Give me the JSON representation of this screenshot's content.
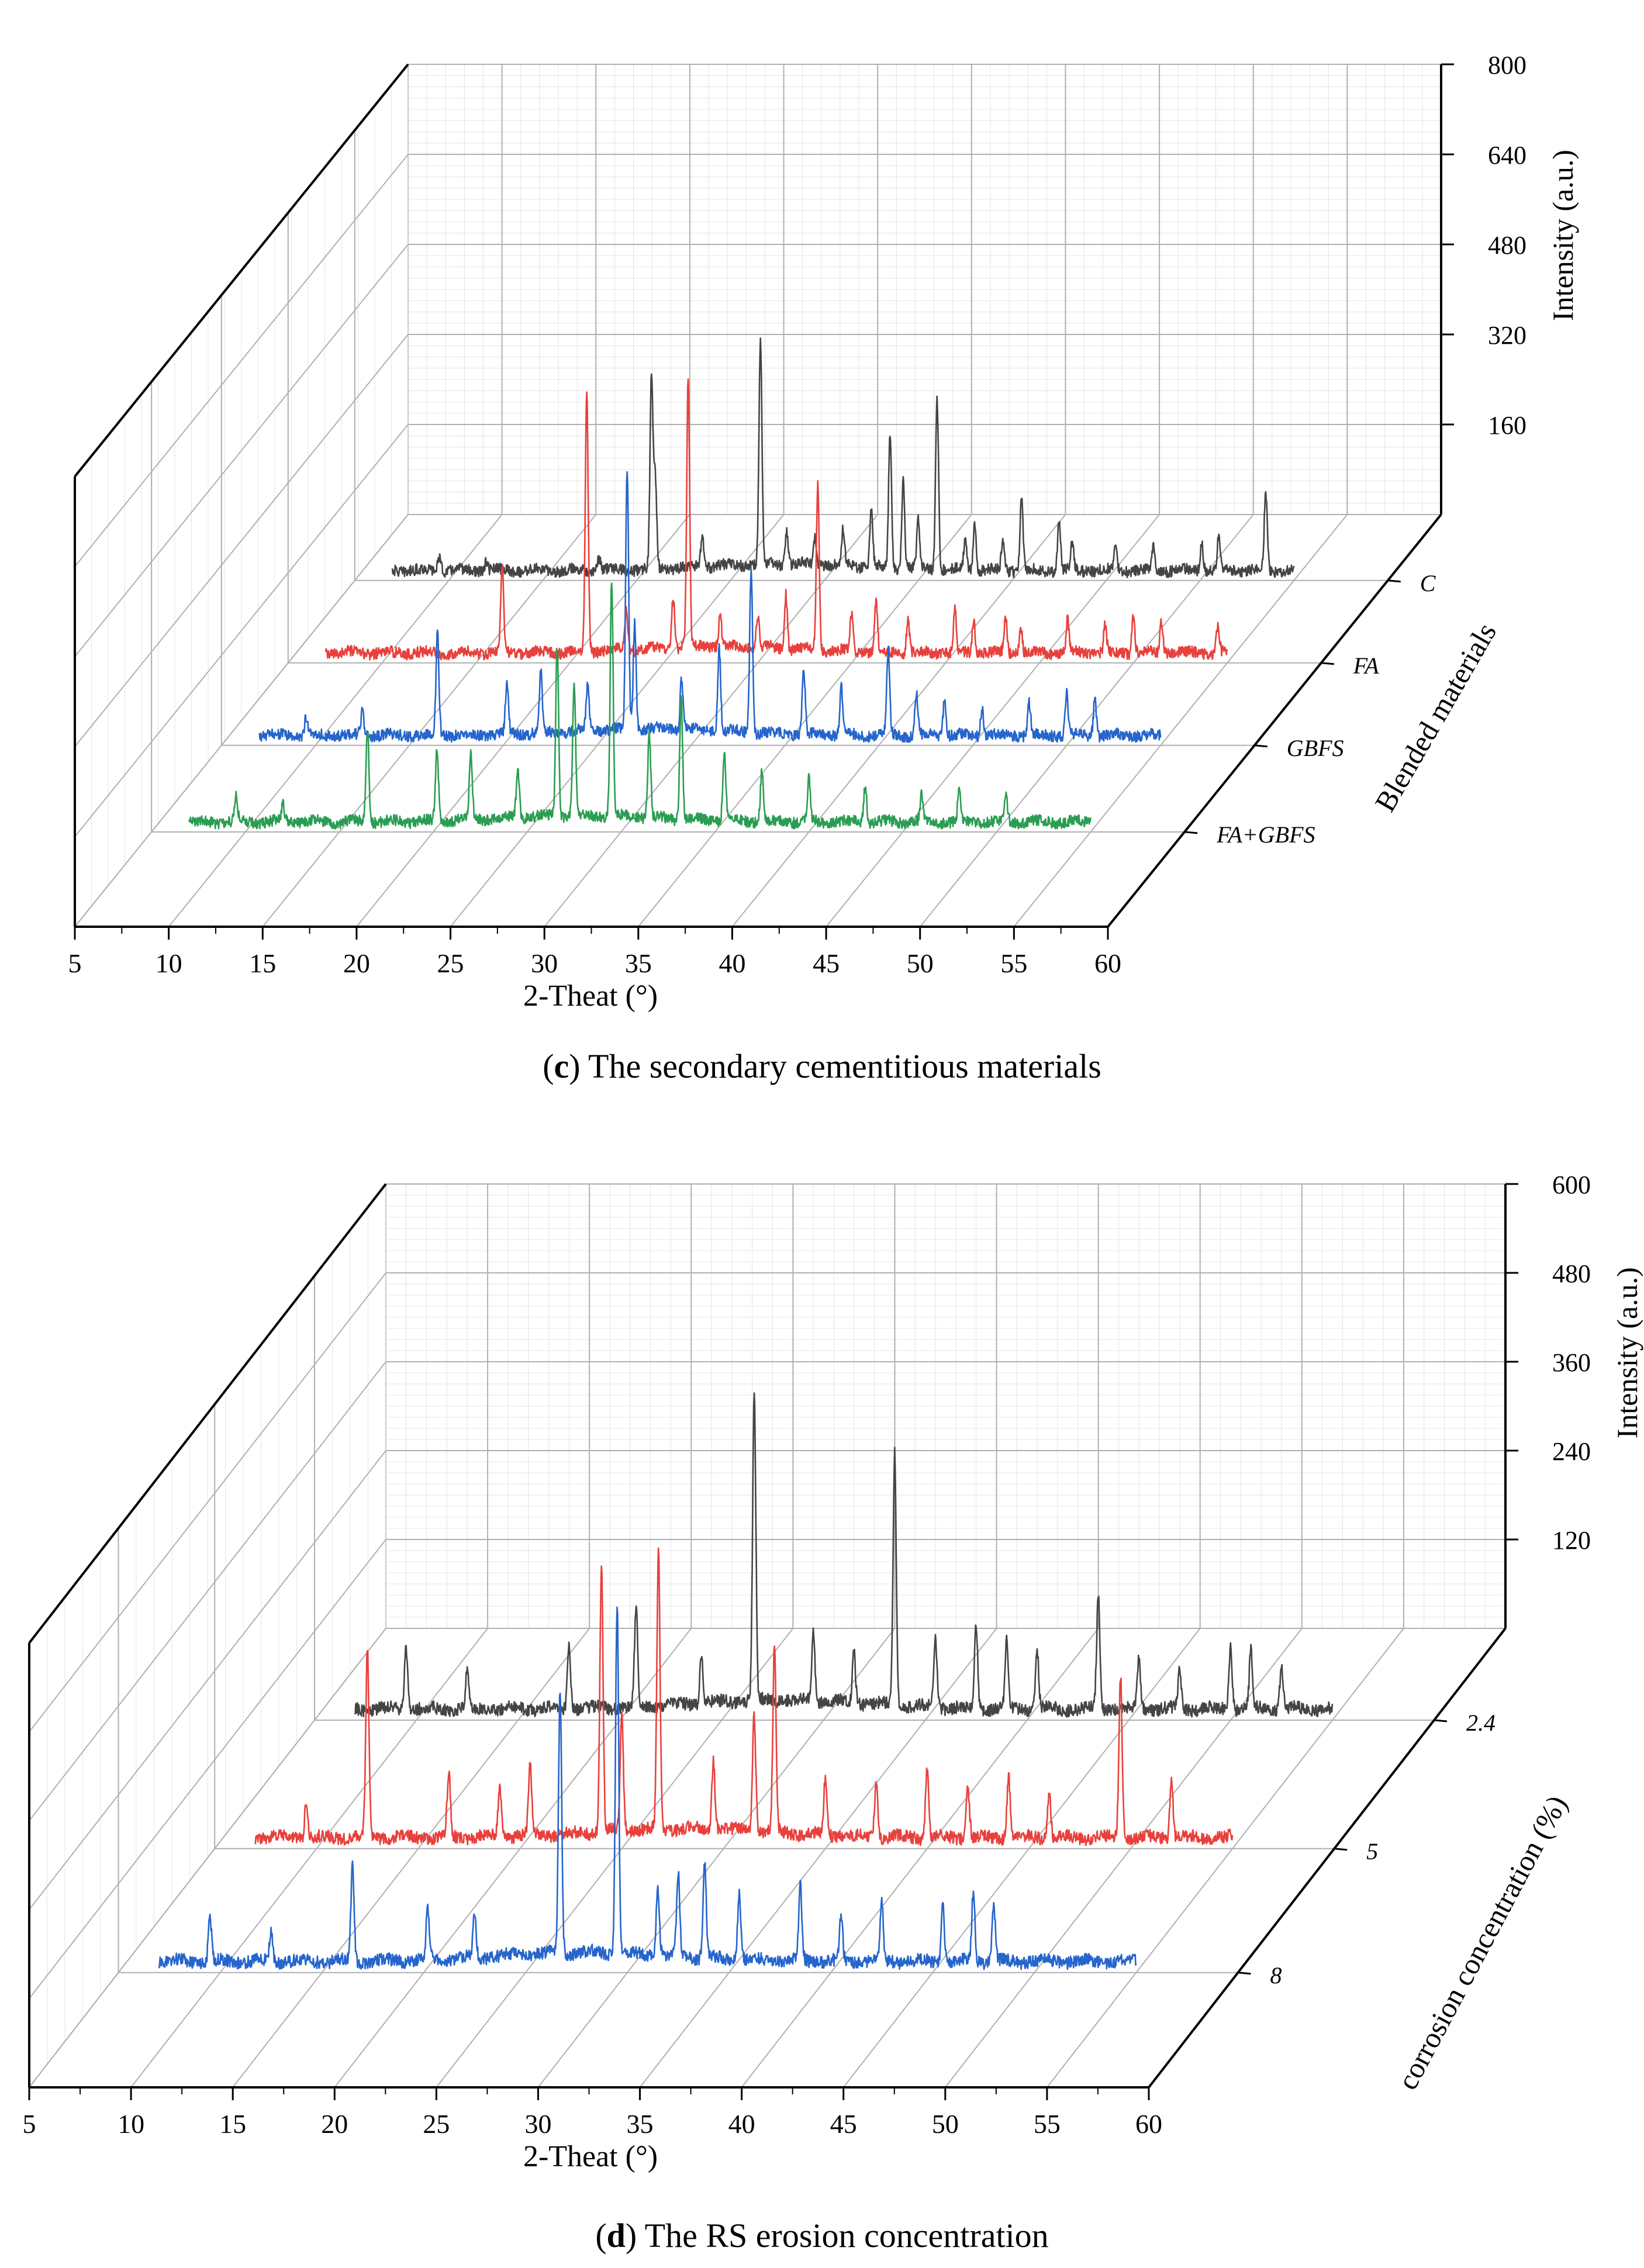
{
  "colors": {
    "C": "#444444",
    "FA": "#e8403c",
    "GBFS": "#2565cc",
    "FA_GBFS": "#2a9d52",
    "grid_major": "#b0b0b0",
    "grid_minor": "#e4e4e4",
    "axis": "#000000"
  },
  "chart_data": [
    {
      "id": "c",
      "type": "line",
      "view": "3d-waterfall",
      "caption_letter": "c",
      "caption_text": " The secondary cementitious materials",
      "xlabel": "2-Theat (°)",
      "ylabel": "Blended materials",
      "zlabel": "Intensity (a.u.)",
      "xlim": [
        5,
        60
      ],
      "xticks": [
        5,
        10,
        15,
        20,
        25,
        30,
        35,
        40,
        45,
        50,
        55,
        60
      ],
      "zlim": [
        0,
        800
      ],
      "zticks": [
        160,
        320,
        480,
        640,
        800
      ],
      "series": [
        {
          "name": "C",
          "color_key": "C",
          "baseline": 22,
          "noise": 12,
          "x_start": 7,
          "x_end": 55,
          "peaks": [
            [
              9.5,
              35
            ],
            [
              12,
              20
            ],
            [
              18,
              28
            ],
            [
              20.8,
              420
            ],
            [
              21,
              190
            ],
            [
              23.5,
              70
            ],
            [
              26.6,
              480
            ],
            [
              28,
              70
            ],
            [
              29.5,
              60
            ],
            [
              31,
              80
            ],
            [
              32.5,
              120
            ],
            [
              33.5,
              290
            ],
            [
              34.2,
              190
            ],
            [
              35,
              110
            ],
            [
              36,
              380
            ],
            [
              37.5,
              70
            ],
            [
              38,
              100
            ],
            [
              39.5,
              60
            ],
            [
              40.5,
              160
            ],
            [
              42.5,
              110
            ],
            [
              43.2,
              60
            ],
            [
              45.5,
              55
            ],
            [
              47.5,
              50
            ],
            [
              50.1,
              60
            ],
            [
              51,
              70
            ],
            [
              53.5,
              170
            ]
          ]
        },
        {
          "name": "FA",
          "color_key": "FA",
          "baseline": 22,
          "noise": 12,
          "x_start": 7,
          "x_end": 55,
          "peaks": [
            [
              16.4,
              190
            ],
            [
              20.9,
              560
            ],
            [
              23,
              90
            ],
            [
              25.5,
              110
            ],
            [
              26.3,
              580
            ],
            [
              28,
              70
            ],
            [
              30,
              70
            ],
            [
              31.5,
              120
            ],
            [
              33.2,
              360
            ],
            [
              35,
              80
            ],
            [
              36.3,
              110
            ],
            [
              38,
              70
            ],
            [
              40.5,
              90
            ],
            [
              41.5,
              70
            ],
            [
              43.2,
              80
            ],
            [
              44,
              60
            ],
            [
              46.5,
              70
            ],
            [
              48.5,
              60
            ],
            [
              50,
              80
            ],
            [
              51.5,
              70
            ],
            [
              54.5,
              60
            ]
          ]
        },
        {
          "name": "GBFS",
          "color_key": "GBFS",
          "baseline": 22,
          "noise": 12,
          "x_start": 7,
          "x_end": 55,
          "peaks": [
            [
              9.5,
              40
            ],
            [
              12.5,
              50
            ],
            [
              16.5,
              220
            ],
            [
              20.2,
              110
            ],
            [
              22,
              130
            ],
            [
              24.5,
              100
            ],
            [
              26.6,
              560
            ],
            [
              27,
              230
            ],
            [
              29.5,
              110
            ],
            [
              31.5,
              180
            ],
            [
              33.2,
              360
            ],
            [
              36,
              140
            ],
            [
              38,
              100
            ],
            [
              40.5,
              180
            ],
            [
              42,
              90
            ],
            [
              43.5,
              80
            ],
            [
              45.5,
              60
            ],
            [
              48,
              70
            ],
            [
              50,
              90
            ],
            [
              51.5,
              80
            ]
          ]
        },
        {
          "name": "FA+GBFS",
          "color_key": "FA_GBFS",
          "baseline": 22,
          "noise": 12,
          "x_start": 7,
          "x_end": 55,
          "peaks": [
            [
              9.5,
              60
            ],
            [
              12,
              40
            ],
            [
              16.5,
              200
            ],
            [
              20.2,
              160
            ],
            [
              22,
              140
            ],
            [
              24.5,
              110
            ],
            [
              26.6,
              370
            ],
            [
              27.5,
              290
            ],
            [
              29.5,
              510
            ],
            [
              31.5,
              180
            ],
            [
              33.2,
              260
            ],
            [
              35.5,
              150
            ],
            [
              37.5,
              110
            ],
            [
              40,
              90
            ],
            [
              43,
              80
            ],
            [
              46,
              60
            ],
            [
              48,
              70
            ],
            [
              50.5,
              60
            ]
          ]
        }
      ]
    },
    {
      "id": "d",
      "type": "line",
      "view": "3d-waterfall",
      "caption_letter": "d",
      "caption_text": " The RS erosion concentration",
      "xlabel": "2-Theat (°)",
      "ylabel": "corrosion concentration (%)",
      "zlabel": "Intensity (a.u.)",
      "xlim": [
        5,
        60
      ],
      "xticks": [
        5,
        10,
        15,
        20,
        25,
        30,
        35,
        40,
        45,
        50,
        55,
        60
      ],
      "zlim": [
        0,
        600
      ],
      "zticks": [
        120,
        240,
        360,
        480,
        600
      ],
      "series": [
        {
          "name": "2.4",
          "color_key": "C",
          "baseline": 18,
          "noise": 10,
          "x_start": 7,
          "x_end": 55,
          "peaks": [
            [
              9.5,
              100
            ],
            [
              12.5,
              60
            ],
            [
              17.5,
              100
            ],
            [
              20.8,
              160
            ],
            [
              24,
              80
            ],
            [
              26.6,
              490
            ],
            [
              29.5,
              110
            ],
            [
              31.5,
              80
            ],
            [
              33.5,
              400
            ],
            [
              35.5,
              110
            ],
            [
              37.5,
              130
            ],
            [
              39,
              110
            ],
            [
              40.5,
              90
            ],
            [
              43.5,
              180
            ],
            [
              45.5,
              80
            ],
            [
              47.5,
              60
            ],
            [
              50,
              100
            ],
            [
              51,
              90
            ],
            [
              52.5,
              70
            ]
          ]
        },
        {
          "name": "5",
          "color_key": "FA",
          "baseline": 18,
          "noise": 10,
          "x_start": 7,
          "x_end": 55,
          "peaks": [
            [
              9.5,
              60
            ],
            [
              12.5,
              300
            ],
            [
              16.5,
              100
            ],
            [
              19,
              80
            ],
            [
              20.5,
              110
            ],
            [
              24,
              420
            ],
            [
              25,
              180
            ],
            [
              26.8,
              440
            ],
            [
              29.5,
              110
            ],
            [
              31.5,
              190
            ],
            [
              32.5,
              300
            ],
            [
              35,
              90
            ],
            [
              37.5,
              90
            ],
            [
              40,
              110
            ],
            [
              42,
              80
            ],
            [
              44,
              100
            ],
            [
              46,
              70
            ],
            [
              49.5,
              260
            ],
            [
              52,
              90
            ]
          ]
        },
        {
          "name": "8",
          "color_key": "GBFS",
          "baseline": 18,
          "noise": 10,
          "x_start": 7,
          "x_end": 55,
          "peaks": [
            [
              9.5,
              70
            ],
            [
              12.5,
              50
            ],
            [
              16.5,
              150
            ],
            [
              20.2,
              80
            ],
            [
              22.5,
              70
            ],
            [
              26.7,
              420
            ],
            [
              29.5,
              560
            ],
            [
              31.5,
              110
            ],
            [
              32.5,
              130
            ],
            [
              33.8,
              150
            ],
            [
              35.5,
              110
            ],
            [
              38.5,
              120
            ],
            [
              40.5,
              70
            ],
            [
              42.5,
              90
            ],
            [
              45.5,
              90
            ],
            [
              47,
              110
            ],
            [
              48,
              90
            ]
          ]
        }
      ]
    }
  ]
}
